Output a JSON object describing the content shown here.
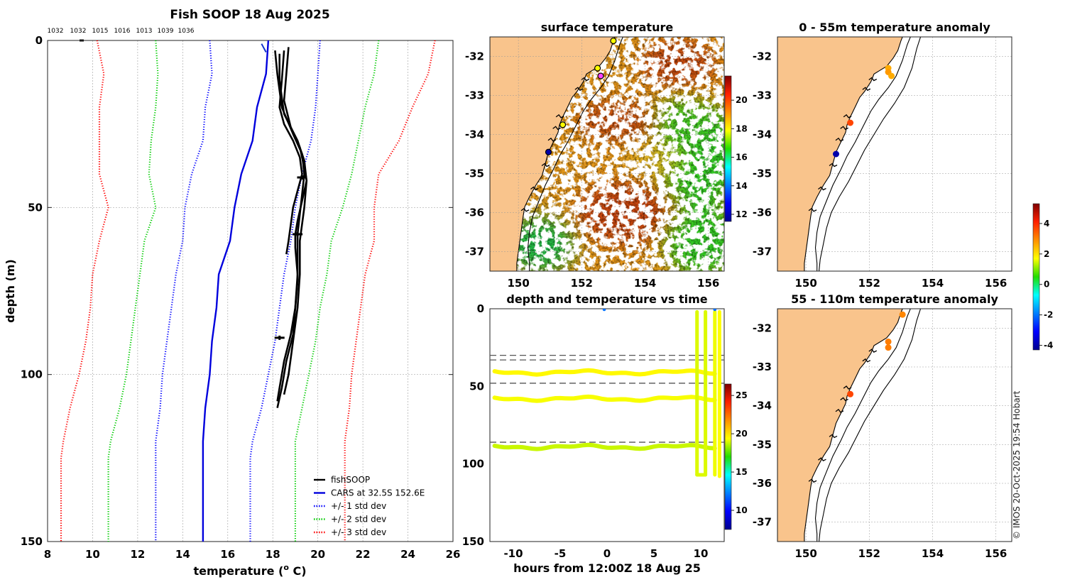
{
  "figure": {
    "credit": "© IMOS 20-Oct-2025 19:54 Hobart"
  },
  "chart_data": [
    {
      "id": "profile",
      "type": "line",
      "title": "Fish SOOP 18 Aug 2025",
      "xlabel": "temperature (",
      "xlabel_sup": "o",
      "xlabel_end": " C)",
      "ylabel": "depth (m)",
      "xlim": [
        8,
        26
      ],
      "ylim": [
        150,
        0
      ],
      "xticks": [
        "8",
        "10",
        "12",
        "14",
        "16",
        "18",
        "20",
        "22",
        "24",
        "26"
      ],
      "yticks": [
        "0",
        "50",
        "100",
        "150"
      ],
      "grid": "dotted",
      "top_labels": [
        "1032",
        "1032",
        "1015",
        "1016",
        "1013",
        "1039",
        "1036"
      ],
      "depth": [
        0,
        10,
        20,
        30,
        40,
        50,
        60,
        70,
        80,
        90,
        100,
        110,
        120,
        125,
        150
      ],
      "series": [
        {
          "name": "CARS at 32.5S 152.6E",
          "style": "solid",
          "color": "#0000dd",
          "values": [
            17.8,
            17.7,
            17.3,
            17.1,
            16.6,
            16.3,
            16.1,
            15.6,
            15.5,
            15.3,
            15.2,
            15.0,
            14.9,
            14.9,
            14.9
          ]
        },
        {
          "name": "+/- 1 std dev (low)",
          "style": "dotted",
          "color": "#0000ff",
          "values": [
            15.2,
            15.3,
            15.0,
            14.9,
            14.4,
            14.1,
            14.0,
            13.7,
            13.5,
            13.3,
            13.1,
            13.0,
            12.8,
            12.8,
            12.8
          ]
        },
        {
          "name": "+/- 1 std dev (high)",
          "style": "dotted",
          "color": "#0000ff",
          "values": [
            20.1,
            20.0,
            19.9,
            19.7,
            19.3,
            19.0,
            18.8,
            18.5,
            18.3,
            18.1,
            17.8,
            17.5,
            17.1,
            17.0,
            17.0
          ]
        },
        {
          "name": "+/- 2 std dev (low)",
          "style": "dotted",
          "color": "#00cc00",
          "values": [
            12.8,
            12.9,
            12.8,
            12.6,
            12.5,
            12.8,
            12.3,
            12.1,
            11.9,
            11.7,
            11.5,
            11.2,
            10.8,
            10.7,
            10.7
          ]
        },
        {
          "name": "+/- 2 std dev (high)",
          "style": "dotted",
          "color": "#00cc00",
          "values": [
            22.7,
            22.5,
            22.1,
            21.8,
            21.5,
            21.1,
            20.6,
            20.4,
            20.1,
            19.9,
            19.6,
            19.3,
            19.0,
            19.0,
            19.0
          ]
        },
        {
          "name": "+/- 3 std dev (low)",
          "style": "dotted",
          "color": "#ff0000",
          "values": [
            10.2,
            10.5,
            10.3,
            10.3,
            10.3,
            10.7,
            10.3,
            10.0,
            9.9,
            9.7,
            9.4,
            9.0,
            8.7,
            8.6,
            8.6
          ]
        },
        {
          "name": "+/- 3 std dev (high)",
          "style": "dotted",
          "color": "#ff0000",
          "values": [
            25.2,
            24.9,
            24.2,
            23.6,
            22.7,
            22.5,
            22.5,
            22.1,
            21.9,
            21.7,
            21.5,
            21.4,
            21.2,
            21.2,
            21.2
          ]
        }
      ],
      "fishsoop": [
        {
          "depth": [
            3,
            12,
            20,
            25,
            30,
            35,
            40,
            45,
            50,
            55,
            60,
            64
          ],
          "temp": [
            18.5,
            18.4,
            18.3,
            18.5,
            18.9,
            19.2,
            19.3,
            19.1,
            18.9,
            18.8,
            18.7,
            18.6
          ]
        },
        {
          "depth": [
            2,
            10,
            18,
            26,
            32,
            38,
            42,
            48,
            54,
            58,
            62,
            70,
            80,
            88,
            96,
            104,
            110
          ],
          "temp": [
            18.7,
            18.6,
            18.5,
            18.8,
            19.2,
            19.4,
            19.5,
            19.3,
            19.1,
            19.0,
            19.0,
            19.1,
            19.0,
            18.9,
            18.6,
            18.4,
            18.2
          ]
        },
        {
          "depth": [
            3,
            10,
            20,
            28,
            34,
            40,
            46,
            52,
            58,
            64,
            72,
            80,
            88,
            96,
            104,
            108
          ],
          "temp": [
            18.1,
            18.2,
            18.4,
            18.9,
            19.3,
            19.4,
            19.3,
            19.2,
            19.1,
            19.1,
            19.1,
            19.0,
            18.8,
            18.5,
            18.3,
            18.2
          ]
        },
        {
          "depth": [
            4,
            12,
            22,
            30,
            36,
            42,
            50,
            60,
            70,
            80,
            90,
            100,
            106
          ],
          "temp": [
            18.3,
            18.3,
            18.5,
            19.1,
            19.4,
            19.5,
            19.4,
            19.2,
            19.2,
            19.1,
            18.9,
            18.7,
            18.5
          ]
        }
      ],
      "legend": {
        "position": "bottom-right",
        "entries": [
          {
            "label": "fishSOOP",
            "color": "#000000",
            "style": "solid"
          },
          {
            "label": "CARS at 32.5S 152.6E",
            "color": "#0000dd",
            "style": "solid"
          },
          {
            "label": "+/- 1 std dev",
            "color": "#0000ff",
            "style": "dotted"
          },
          {
            "label": "+/- 2 std dev",
            "color": "#00cc00",
            "style": "dotted"
          },
          {
            "label": "+/- 3 std dev",
            "color": "#ff0000",
            "style": "dotted"
          }
        ]
      }
    },
    {
      "id": "sst",
      "type": "heatmap",
      "title": "surface temperature",
      "xlim": [
        149.1,
        156.5
      ],
      "ylim": [
        -37.5,
        -31.5
      ],
      "xticks": [
        "150",
        "152",
        "154",
        "156"
      ],
      "yticks": [
        "-32",
        "-33",
        "-34",
        "-35",
        "-36",
        "-37"
      ],
      "colorbar": {
        "min": 11.5,
        "max": 21.7,
        "ticks": [
          "12",
          "14",
          "16",
          "18",
          "20"
        ]
      },
      "stations": [
        {
          "lon": 153.0,
          "lat": -31.6,
          "color": "#ffff00"
        },
        {
          "lon": 152.5,
          "lat": -32.3,
          "color": "#ffff00"
        },
        {
          "lon": 152.6,
          "lat": -32.5,
          "color": "#ff44ff"
        },
        {
          "lon": 151.4,
          "lat": -33.75,
          "color": "#ffff00"
        },
        {
          "lon": 150.95,
          "lat": -34.45,
          "color": "#0000aa"
        }
      ]
    },
    {
      "id": "timeline",
      "type": "scatter",
      "title": "depth and temperature vs time",
      "xlabel": "hours from 12:00Z 18 Aug 25",
      "xlim": [
        -12.5,
        12.5
      ],
      "ylim": [
        150,
        0
      ],
      "xticks": [
        "-10",
        "-5",
        "0",
        "5",
        "10"
      ],
      "yticks": [
        "0",
        "50",
        "100",
        "150"
      ],
      "dashed_depths": [
        30,
        33,
        48,
        86
      ],
      "tows": [
        {
          "t0": -12,
          "t1": 11.8,
          "depth": 41,
          "temp": 19.5
        },
        {
          "t0": -12,
          "t1": 11.8,
          "depth": 58,
          "temp": 19.3
        },
        {
          "t0": -12,
          "t1": 11.8,
          "depth": 89,
          "temp": 18.8
        }
      ],
      "profiles": [
        {
          "t": 9.6,
          "d0": 2,
          "d1": 107,
          "temp": 19.0
        },
        {
          "t": 10.5,
          "d0": 2,
          "d1": 107,
          "temp": 19.0
        },
        {
          "t": 11.5,
          "d0": 2,
          "d1": 107,
          "temp": 19.2
        },
        {
          "t": 12.0,
          "d0": 2,
          "d1": 108,
          "temp": 19.4
        }
      ],
      "surface_points": [
        {
          "t": -0.3,
          "depth": 0,
          "temp": 12.0
        },
        {
          "t": 11.5,
          "depth": 0,
          "temp": 12.0
        }
      ],
      "colorbar": {
        "min": 7.5,
        "max": 26.5,
        "ticks": [
          "10",
          "15",
          "20",
          "25"
        ]
      }
    },
    {
      "id": "anom_shallow",
      "type": "scatter",
      "title": "0 - 55m temperature anomaly",
      "xlim": [
        149.1,
        156.5
      ],
      "ylim": [
        -37.5,
        -31.5
      ],
      "xticks": [
        "150",
        "152",
        "154",
        "156"
      ],
      "yticks": [
        "-32",
        "-33",
        "-34",
        "-35",
        "-36",
        "-37"
      ],
      "points": [
        {
          "lon": 152.6,
          "lat": -32.3,
          "anomaly": 2.6
        },
        {
          "lon": 152.6,
          "lat": -32.4,
          "anomaly": 2.8
        },
        {
          "lon": 152.7,
          "lat": -32.5,
          "anomaly": 2.6
        },
        {
          "lon": 151.4,
          "lat": -33.7,
          "anomaly": 3.7
        },
        {
          "lon": 150.95,
          "lat": -34.5,
          "anomaly": -4.0
        }
      ]
    },
    {
      "id": "anom_deep",
      "type": "scatter",
      "title": "55 - 110m temperature anomaly",
      "xlim": [
        149.1,
        156.5
      ],
      "ylim": [
        -37.5,
        -31.5
      ],
      "xticks": [
        "150",
        "152",
        "154",
        "156"
      ],
      "yticks": [
        "-32",
        "-33",
        "-34",
        "-35",
        "-36",
        "-37"
      ],
      "points": [
        {
          "lon": 153.05,
          "lat": -31.65,
          "anomaly": 3.0
        },
        {
          "lon": 152.6,
          "lat": -32.35,
          "anomaly": 3.1
        },
        {
          "lon": 152.6,
          "lat": -32.5,
          "anomaly": 3.1
        },
        {
          "lon": 151.4,
          "lat": -33.7,
          "anomaly": 3.7
        }
      ]
    },
    {
      "id": "anom_colorbar",
      "type": "heatmap",
      "min": -4.3,
      "max": 5.3,
      "ticks": [
        "4",
        "2",
        "0",
        "-2",
        "-4"
      ]
    }
  ]
}
